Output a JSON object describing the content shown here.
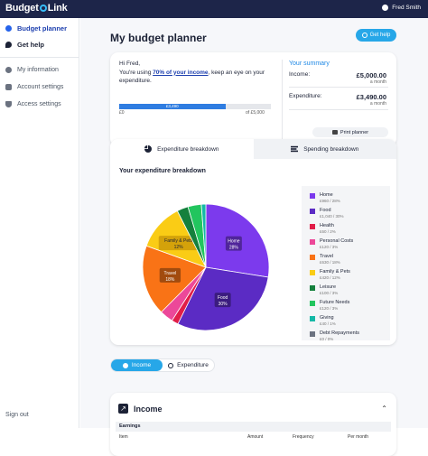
{
  "header": {
    "logo_part1": "Budget",
    "logo_part2": "Link",
    "user_name": "Fred Smith"
  },
  "sidebar": {
    "items": [
      {
        "label": "Budget planner",
        "icon": "budget-icon"
      },
      {
        "label": "Get help",
        "icon": "help-icon"
      },
      {
        "label": "My information",
        "icon": "person-icon"
      },
      {
        "label": "Account settings",
        "icon": "gear-icon"
      },
      {
        "label": "Access settings",
        "icon": "shield-icon"
      }
    ],
    "sign_out": "Sign out"
  },
  "page": {
    "title": "My budget planner",
    "help_button": "Get help"
  },
  "summary": {
    "greeting_line1": "Hi Fred,",
    "greeting_pre": "You're using ",
    "greeting_pct": "70% of your income",
    "greeting_post": ", keep an eye on your expenditure.",
    "progress_fraction": 0.7,
    "progress_label": "£3,490",
    "progress_min": "£0",
    "progress_max": "of £5,000",
    "title": "Your summary",
    "income_label": "Income:",
    "income_amount": "£5,000.00",
    "income_period": "a month",
    "expenditure_label": "Expenditure:",
    "expenditure_amount": "£3,490.00",
    "expenditure_period": "a month",
    "print_button": "Print planner"
  },
  "breakdown": {
    "tab_active": "Expenditure breakdown",
    "tab_inactive": "Spending breakdown",
    "chart_title": "Your expenditure breakdown"
  },
  "chart_data": {
    "type": "pie",
    "title": "Your expenditure breakdown",
    "slices": [
      {
        "name": "Home",
        "value": 960,
        "pct": 28,
        "detail": "£960 / 28%",
        "color": "#7c3aed",
        "label": "Home",
        "label_pct": "28%"
      },
      {
        "name": "Food",
        "value": 1040,
        "pct": 30,
        "detail": "£1,040 / 30%",
        "color": "#5b2bc4",
        "label": "Food",
        "label_pct": "30%"
      },
      {
        "name": "Health",
        "value": 60,
        "pct": 2,
        "detail": "£60 / 2%",
        "color": "#e11d48",
        "label": "",
        "label_pct": ""
      },
      {
        "name": "Personal Costs",
        "value": 120,
        "pct": 3,
        "detail": "£120 / 3%",
        "color": "#ec4899",
        "label": "",
        "label_pct": ""
      },
      {
        "name": "Travel",
        "value": 630,
        "pct": 18,
        "detail": "£630 / 18%",
        "color": "#f97316",
        "label": "Travel",
        "label_pct": "18%"
      },
      {
        "name": "Family & Pets",
        "value": 420,
        "pct": 12,
        "detail": "£420 / 12%",
        "color": "#facc15",
        "label": "Family & Pets",
        "label_pct": "12%"
      },
      {
        "name": "Leisure",
        "value": 100,
        "pct": 3,
        "detail": "£100 / 3%",
        "color": "#15803d",
        "label": "",
        "label_pct": ""
      },
      {
        "name": "Future Needs",
        "value": 120,
        "pct": 3,
        "detail": "£120 / 3%",
        "color": "#22c55e",
        "label": "",
        "label_pct": ""
      },
      {
        "name": "Giving",
        "value": 40,
        "pct": 1,
        "detail": "£40 / 1%",
        "color": "#14b8a6",
        "label": "",
        "label_pct": ""
      },
      {
        "name": "Debt Repayments",
        "value": 0,
        "pct": 0,
        "detail": "£0 / 0%",
        "color": "#6b7280",
        "label": "",
        "label_pct": ""
      }
    ]
  },
  "toggle": {
    "income": "Income",
    "expenditure": "Expenditure"
  },
  "income_section": {
    "title": "Income",
    "subheader": "Earnings",
    "columns": [
      "Item",
      "Amount",
      "Frequency",
      "Per month"
    ]
  }
}
